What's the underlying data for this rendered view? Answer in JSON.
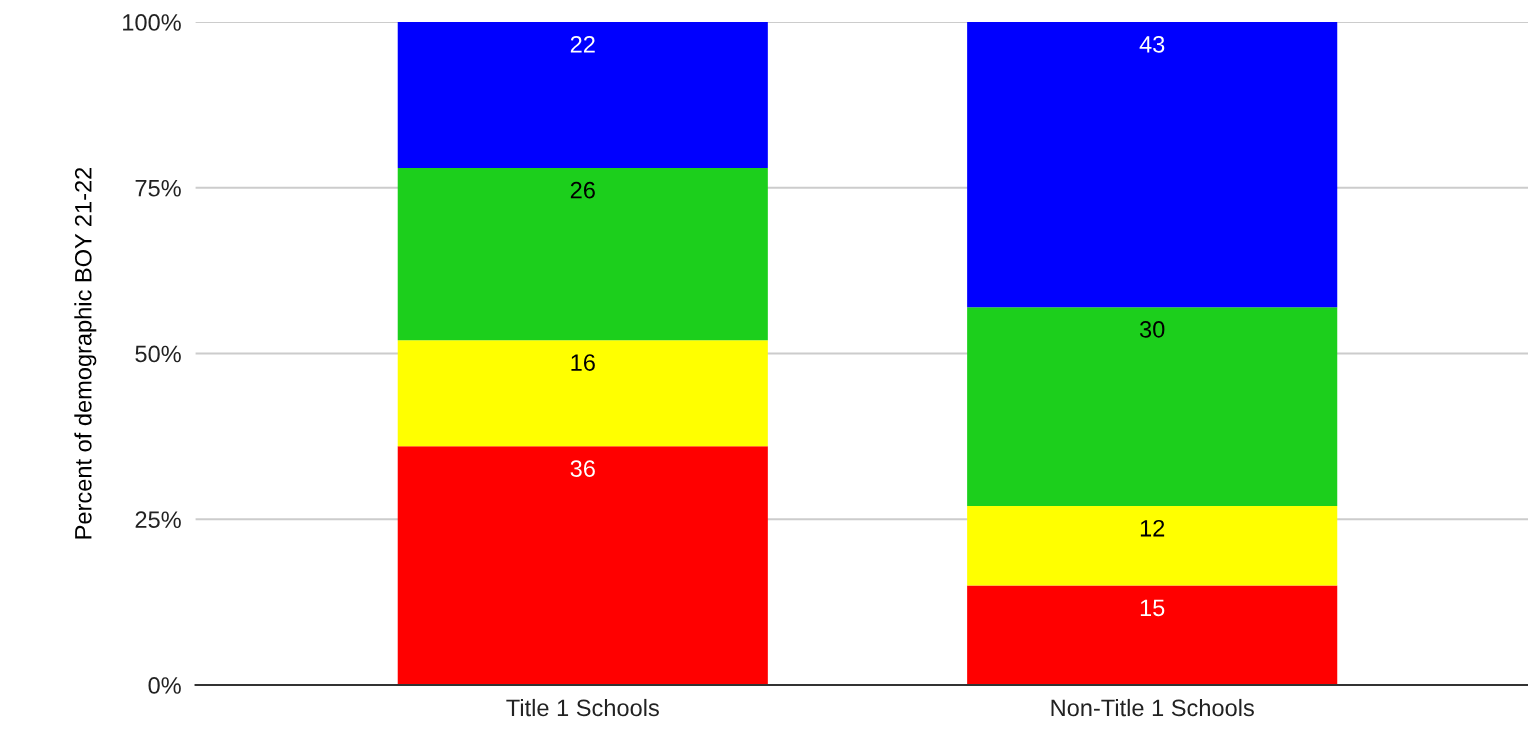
{
  "chart_data": {
    "type": "bar",
    "stacked": true,
    "ylabel": "Percent of demographic BOY 21-22",
    "categories": [
      "Title 1 Schools",
      "Non-Title 1 Schools"
    ],
    "series": [
      {
        "color": "#ff0000",
        "values": [
          36,
          15
        ]
      },
      {
        "color": "#ffff00",
        "values": [
          16,
          12
        ]
      },
      {
        "color": "#1ccf1c",
        "values": [
          26,
          30
        ]
      },
      {
        "color": "#0000ff",
        "values": [
          22,
          43
        ]
      }
    ],
    "ylim": [
      0,
      100
    ],
    "yticks": [
      {
        "value": 0,
        "label": "0%"
      },
      {
        "value": 25,
        "label": "25%"
      },
      {
        "value": 50,
        "label": "50%"
      },
      {
        "value": 75,
        "label": "75%"
      },
      {
        "value": 100,
        "label": "100%"
      }
    ],
    "grid": "y",
    "data_labels": true
  }
}
